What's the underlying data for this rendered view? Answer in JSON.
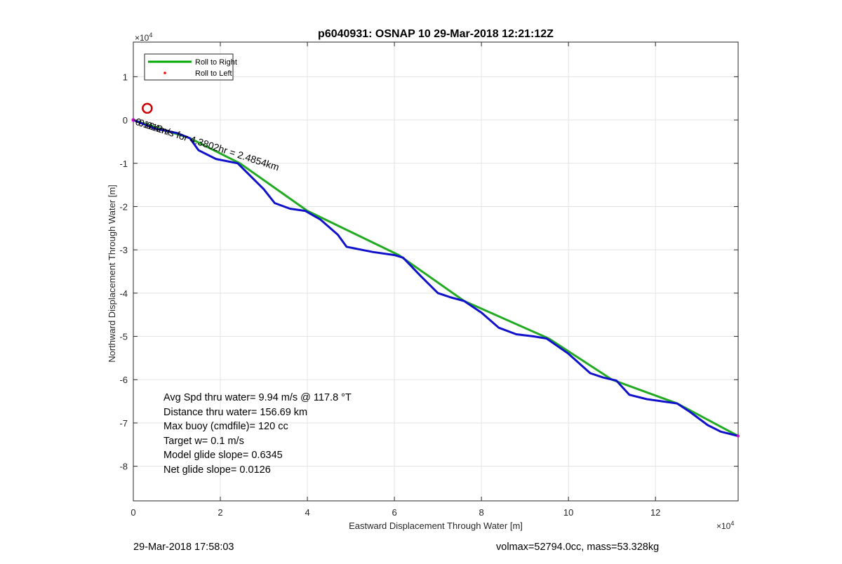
{
  "chart_data": {
    "type": "line",
    "title": "p6040931: OSNAP 10 29-Mar-2018 12:21:12Z",
    "xlabel": "Eastward Displacement Through Water [m]",
    "ylabel": "Northward Displacement Through Water [m]",
    "x_exponent_label": "×10",
    "x_exponent": "4",
    "y_exponent_label": "×10",
    "y_exponent": "4",
    "xlim": [
      0,
      13.9
    ],
    "ylim": [
      -8.8,
      1.8
    ],
    "xticks": [
      0,
      2,
      4,
      6,
      8,
      10,
      12
    ],
    "yticks": [
      1,
      0,
      -1,
      -2,
      -3,
      -4,
      -5,
      -6,
      -7,
      -8
    ],
    "x_tick_labels": [
      "0",
      "2",
      "4",
      "6",
      "8",
      "10",
      "12"
    ],
    "y_tick_labels": [
      "1",
      "0",
      "-1",
      "-2",
      "-3",
      "-4",
      "-5",
      "-6",
      "-7",
      "-8"
    ],
    "grid": true,
    "legend_position": "top-left",
    "legend": [
      {
        "label": "Roll to Right",
        "color": "#00aa00",
        "style": "line"
      },
      {
        "label": "Roll to Left",
        "color": "#ff0000",
        "style": "dot"
      }
    ],
    "series": [
      {
        "name": "Roll to Right",
        "color": "#22aa22",
        "x": [
          0,
          1.3,
          2.45,
          4.0,
          6.1,
          7.6,
          9.55,
          11.0,
          12.5,
          13.9
        ],
        "y": [
          0,
          -0.42,
          -1.0,
          -2.1,
          -3.12,
          -4.18,
          -5.05,
          -6.0,
          -6.55,
          -7.3
        ]
      },
      {
        "name": "",
        "color": "#1111cc",
        "x": [
          0,
          0.5,
          1.0,
          1.3,
          1.5,
          1.9,
          2.4,
          2.7,
          3.0,
          3.25,
          3.6,
          3.95,
          4.3,
          4.7,
          4.9,
          5.5,
          6.0,
          6.2,
          6.6,
          7.0,
          7.3,
          7.6,
          8.0,
          8.4,
          8.8,
          9.2,
          9.5,
          10.0,
          10.5,
          10.8,
          11.1,
          11.4,
          11.8,
          12.5,
          12.8,
          13.2,
          13.5,
          13.9
        ],
        "y": [
          0,
          -0.2,
          -0.3,
          -0.42,
          -0.7,
          -0.9,
          -1.0,
          -1.3,
          -1.6,
          -1.92,
          -2.05,
          -2.1,
          -2.3,
          -2.65,
          -2.93,
          -3.05,
          -3.12,
          -3.18,
          -3.6,
          -4.0,
          -4.1,
          -4.18,
          -4.45,
          -4.8,
          -4.95,
          -5.0,
          -5.05,
          -5.4,
          -5.85,
          -5.95,
          -6.02,
          -6.35,
          -6.45,
          -6.55,
          -6.75,
          -7.05,
          -7.2,
          -7.3
        ]
      }
    ],
    "markers": [
      {
        "type": "circle",
        "x": 0.32,
        "y": 0.27,
        "color": "#cc0000"
      }
    ],
    "annotations": [
      {
        "text": "0.164m/s for 4.3802hr = 2.4854km",
        "x": 0.0,
        "y": -0.02,
        "rotation_deg": 18
      },
      {
        "text": "-0.012m",
        "x": 0.0,
        "y": -0.02,
        "rotation_deg": 18
      }
    ],
    "stats_text": [
      "Avg Spd thru water=  9.94 m/s @ 117.8 °T",
      "Distance thru water= 156.69 km",
      "Max buoy (cmdfile)= 120 cc",
      "Target w= 0.1 m/s",
      "Model glide slope= 0.6345",
      "Net glide slope= 0.0126"
    ]
  },
  "footer": {
    "left": "29-Mar-2018 17:58:03",
    "right": "volmax=52794.0cc, mass=53.328kg"
  }
}
